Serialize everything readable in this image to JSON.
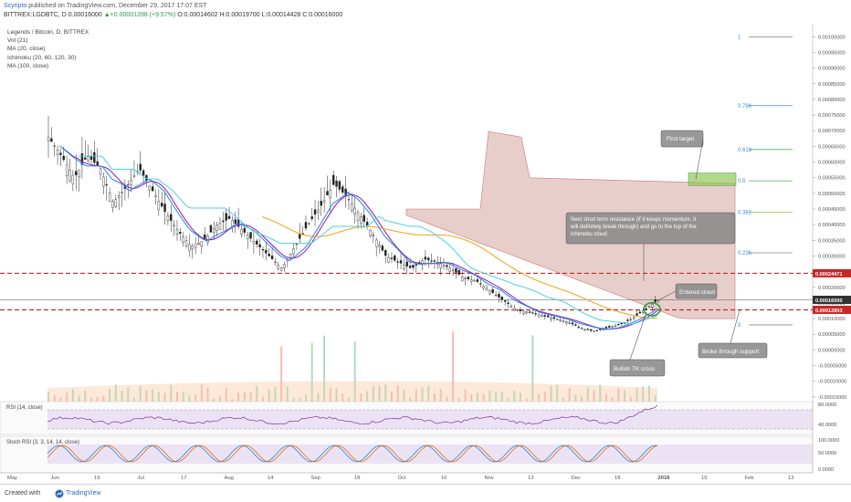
{
  "header": {
    "author": "Scyripto",
    "published": " published on TradingView.com, December 29, 2017 17:07 EST",
    "symbol_line": "BITTREX:LGDBTC, D",
    "open_val": "0.00016000",
    "change": "▲+0.00001398 (+9.57%)",
    "ohlc": "O:0.00014602  H:0.00019700  L:0.00014428  C:0.00016000"
  },
  "legend": {
    "items": [
      "Legends / Bitcoin, D, BITTREX",
      "Vol (21)",
      "MA (20, close)",
      "Ichimoku (20, 60, 120, 30)",
      "MA (100, close)"
    ]
  },
  "panes": {
    "rsi_label": "RSI (14, close)",
    "stoch_label": "Stoch RSI (3, 3, 14, 14, close)"
  },
  "footer": {
    "created": "Created with",
    "brand": "TradingView"
  },
  "colors": {
    "up": "#26a69a",
    "down": "#ef5350",
    "candle": "#222222",
    "ma20": "#9c27b0",
    "ma100": "#f5a623",
    "tenkan": "#1e88e5",
    "kijun": "#4dd0e1",
    "cloud": "#b5534a",
    "resist": "#c62828",
    "chikou": "#6aa84f"
  },
  "chart_data": {
    "type": "candlestick",
    "price_axis": {
      "labels": [
        "0.00100000",
        "0.00095000",
        "0.00090000",
        "0.00085000",
        "0.00080000",
        "0.00075000",
        "0.00070000",
        "0.00065000",
        "0.00060000",
        "0.00055000",
        "0.00050000",
        "0.00045000",
        "0.00040000",
        "0.00035000",
        "0.00030000",
        "0.00025000",
        "0.00020000",
        "0.00015000",
        "0.00010000",
        "0.00005000",
        "0.00000000",
        "-0.00005000",
        "-0.00010000",
        "-0.00015000"
      ],
      "ylim": [
        -0.000165,
        0.00103
      ]
    },
    "price_tags": [
      {
        "value": 0.00024471,
        "label": "0.00024471",
        "style": "red"
      },
      {
        "value": 0.00016,
        "label": "0.00016000",
        "style": "dark"
      },
      {
        "value": 0.00012803,
        "label": "0.00012803",
        "style": "red"
      }
    ],
    "x_axis": {
      "labels": [
        "May",
        "Jun",
        "19",
        "Jul",
        "17",
        "Aug",
        "14",
        "Sep",
        "18",
        "Oct",
        "16",
        "Nov",
        "13",
        "Dec",
        "18",
        "2018",
        "15",
        "Feb",
        "13"
      ]
    },
    "fib_levels": [
      {
        "label": "1",
        "value": 0.001
      },
      {
        "label": "0.786",
        "value": 0.00078
      },
      {
        "label": "0.618",
        "value": 0.00064
      },
      {
        "label": "0.5",
        "value": 0.00054
      },
      {
        "label": "0.382",
        "value": 0.00044
      },
      {
        "label": "0.236",
        "value": 0.00031
      },
      {
        "label": "0",
        "value": 8e-05
      }
    ],
    "ohlc_path": [
      0.00068,
      0.00062,
      0.00055,
      0.00062,
      0.00058,
      0.00047,
      0.00052,
      0.00058,
      0.00051,
      0.00044,
      0.00038,
      0.00033,
      0.00035,
      0.0004,
      0.00042,
      0.00038,
      0.00034,
      0.0003,
      0.00026,
      0.00033,
      0.0004,
      0.00046,
      0.00053,
      0.00049,
      0.00043,
      0.00037,
      0.0003,
      0.00028,
      0.00026,
      0.00029,
      0.00028,
      0.00026,
      0.00023,
      0.00022,
      0.00019,
      0.00016,
      0.00013,
      0.00012,
      0.00011,
      0.0001,
      9e-05,
      7e-05,
      6e-05,
      7e-05,
      8e-05,
      0.0001,
      0.00013,
      0.00016
    ],
    "rsi_axis": [
      "80.0000",
      "40.0000"
    ],
    "stoch_axis": [
      "100.0000",
      "50.0000",
      "0.0000"
    ],
    "annotations": [
      {
        "name": "first-target",
        "text": "First target"
      },
      {
        "name": "next-resistance",
        "text": "Next short term resistance (if it keeps momentum. It will definitely break through) and go to the top of the ichimoku cloud"
      },
      {
        "name": "entered-cloud",
        "text": "Entered cloud"
      },
      {
        "name": "broke-support",
        "text": "Broke through support"
      },
      {
        "name": "bullish-tk",
        "text": "Bullish TK cross"
      }
    ]
  }
}
